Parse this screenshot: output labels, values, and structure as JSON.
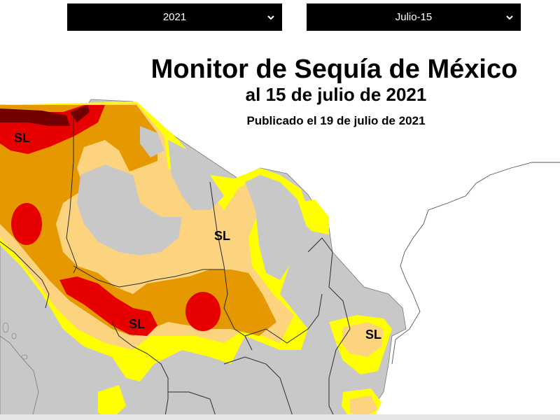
{
  "selectors": {
    "year": {
      "value": "2021"
    },
    "date": {
      "value": "Julio-15"
    }
  },
  "map": {
    "title": "Monitor de Sequía de México",
    "subtitle": "al 15 de julio de 2021",
    "published": "Publicado el 19 de julio de 2021",
    "region_labels": [
      "SL",
      "SL",
      "SL",
      "SL"
    ],
    "colors": {
      "no_drought": "#c8c8c8",
      "d0_abnormally_dry": "#ffff00",
      "d1_moderate": "#fcd37f",
      "d2_severe": "#e69800",
      "d3_extreme": "#e60000",
      "d4_exceptional": "#730000",
      "background": "#ffffff",
      "borders": "#2b2b2b"
    }
  }
}
